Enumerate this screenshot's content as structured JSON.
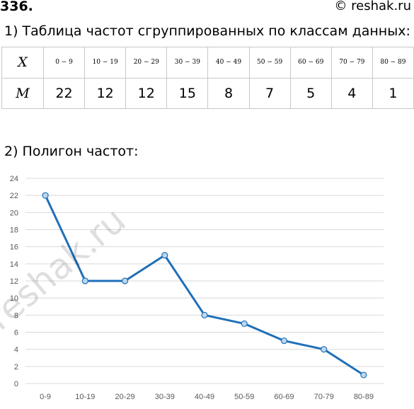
{
  "problem_number": "336.",
  "source_tag": "© reshak.ru",
  "watermark": "reshak.ru",
  "table_heading": "1) Таблица частот сгруппированных по классам данных:",
  "chart_heading": "2) Полигон частот:",
  "table": {
    "x_label": "X",
    "m_label": "M",
    "classes": [
      "0 − 9",
      "10 − 19",
      "20 − 29",
      "30 − 39",
      "40 − 49",
      "50 − 59",
      "60 − 69",
      "70 − 79",
      "80 − 89"
    ],
    "frequencies": [
      "22",
      "12",
      "12",
      "15",
      "8",
      "7",
      "5",
      "4",
      "1"
    ]
  },
  "colors": {
    "line": "#1f6fb9",
    "marker_fill": "#bdd7ee",
    "grid": "#d9d9d9"
  },
  "chart_data": {
    "type": "line",
    "categories": [
      "0-9",
      "10-19",
      "20-29",
      "30-39",
      "40-49",
      "50-59",
      "60-69",
      "70-79",
      "80-89"
    ],
    "values": [
      22,
      12,
      12,
      15,
      8,
      7,
      5,
      4,
      1
    ],
    "y_ticks": [
      "0",
      "2",
      "4",
      "6",
      "8",
      "10",
      "12",
      "14",
      "16",
      "18",
      "20",
      "22",
      "24"
    ],
    "ylim": [
      0,
      24
    ],
    "grid": true,
    "markers": true
  }
}
